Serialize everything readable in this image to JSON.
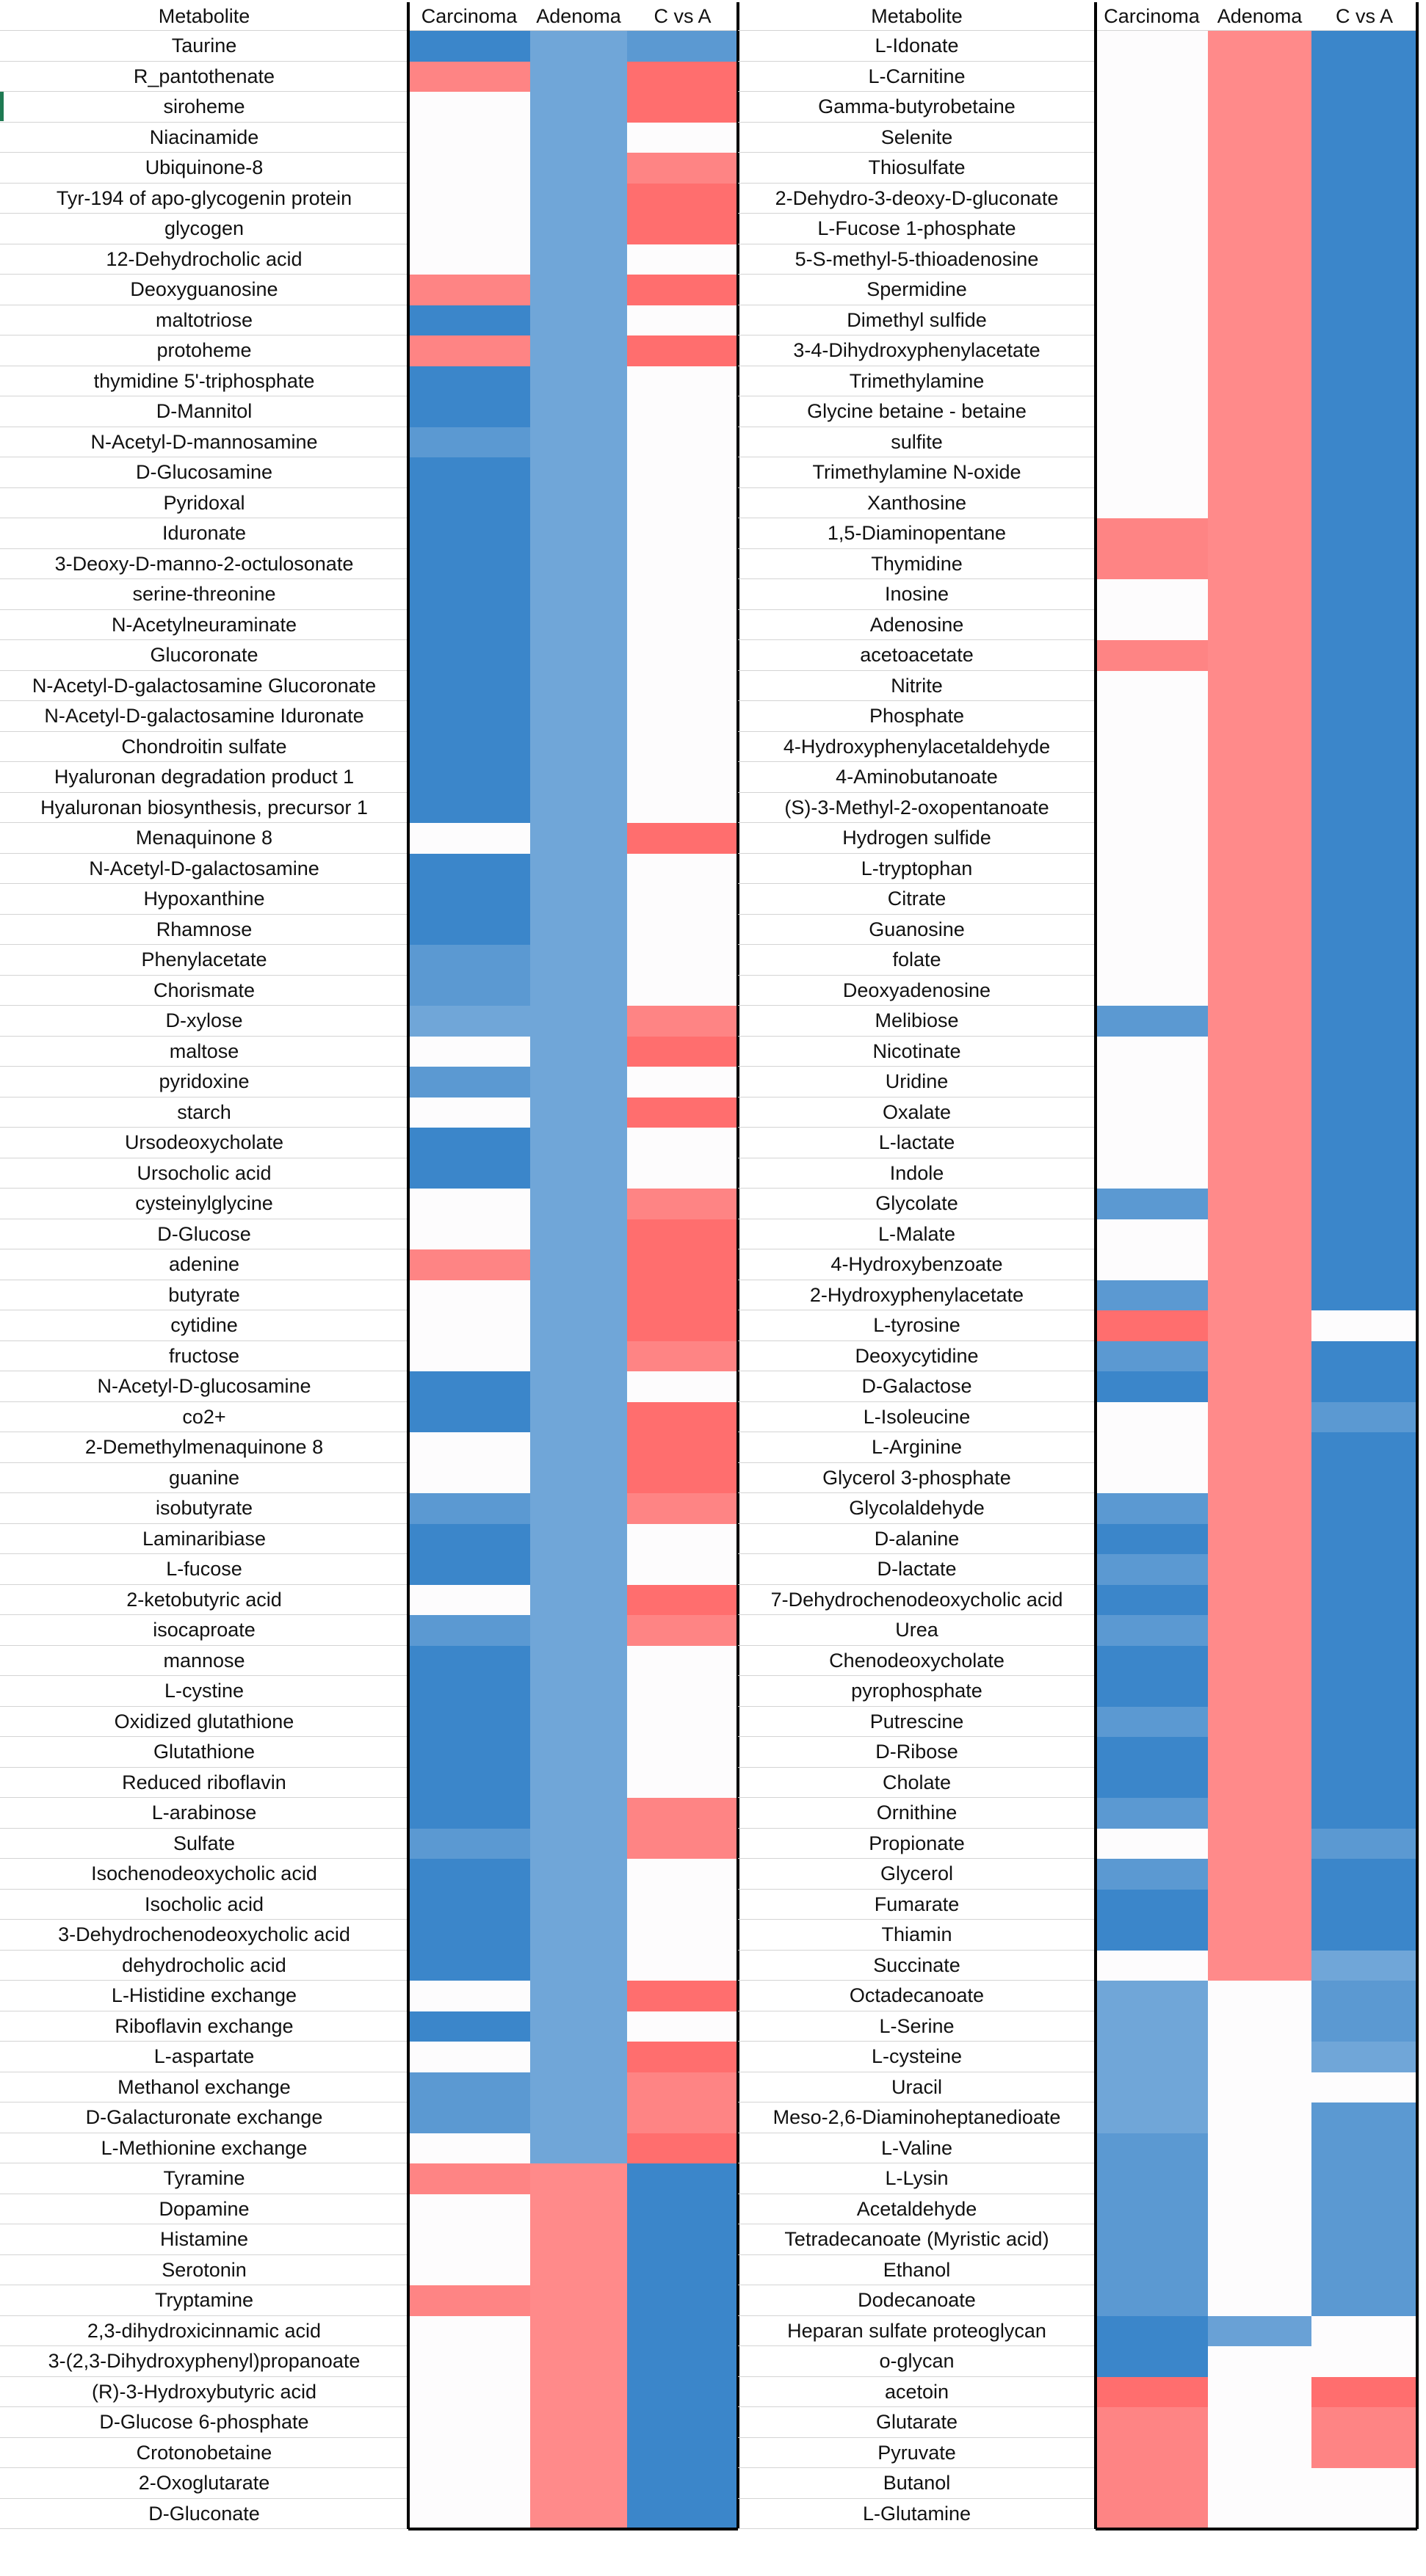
{
  "chart_data": {
    "type": "heatmap",
    "title": "",
    "columns": [
      "Metabolite",
      "Carcinoma",
      "Adenoma",
      "C vs A"
    ],
    "colors": {
      "b1": "#2f7fc6",
      "b2": "#3b86ca",
      "b3": "#5b99d2",
      "b4": "#70a6d8",
      "b5": "#69a1d6",
      "w": "#fdfcfd",
      "r1": "#ff6e6e",
      "r2": "#fe8484",
      "r3": "#ff8a8a"
    },
    "panels": [
      {
        "rows": [
          [
            "Taurine",
            "b2",
            "b4",
            "b3"
          ],
          [
            "R_pantothenate",
            "r2",
            "b4",
            "r1"
          ],
          [
            "siroheme",
            "w",
            "b4",
            "r1"
          ],
          [
            "Niacinamide",
            "w",
            "b4",
            "w"
          ],
          [
            "Ubiquinone-8",
            "w",
            "b4",
            "r2"
          ],
          [
            "Tyr-194 of apo-glycogenin protein",
            "w",
            "b4",
            "r1"
          ],
          [
            "glycogen",
            "w",
            "b4",
            "r1"
          ],
          [
            "12-Dehydrocholic acid",
            "w",
            "b4",
            "w"
          ],
          [
            "Deoxyguanosine",
            "r2",
            "b4",
            "r1"
          ],
          [
            "maltotriose",
            "b2",
            "b4",
            "w"
          ],
          [
            "protoheme",
            "r2",
            "b4",
            "r1"
          ],
          [
            "thymidine 5'-triphosphate",
            "b2",
            "b4",
            "w"
          ],
          [
            "D-Mannitol",
            "b2",
            "b4",
            "w"
          ],
          [
            "N-Acetyl-D-mannosamine",
            "b3",
            "b4",
            "w"
          ],
          [
            "D-Glucosamine",
            "b2",
            "b4",
            "w"
          ],
          [
            "Pyridoxal",
            "b2",
            "b4",
            "w"
          ],
          [
            "Iduronate",
            "b2",
            "b4",
            "w"
          ],
          [
            "3-Deoxy-D-manno-2-octulosonate",
            "b2",
            "b4",
            "w"
          ],
          [
            "serine-threonine",
            "b2",
            "b4",
            "w"
          ],
          [
            "N-Acetylneuraminate",
            "b2",
            "b4",
            "w"
          ],
          [
            "Glucoronate",
            "b2",
            "b4",
            "w"
          ],
          [
            "N-Acetyl-D-galactosamine Glucoronate",
            "b2",
            "b4",
            "w"
          ],
          [
            "N-Acetyl-D-galactosamine Iduronate",
            "b2",
            "b4",
            "w"
          ],
          [
            "Chondroitin sulfate",
            "b2",
            "b4",
            "w"
          ],
          [
            "Hyaluronan degradation product 1",
            "b2",
            "b4",
            "w"
          ],
          [
            "Hyaluronan biosynthesis, precursor 1",
            "b2",
            "b4",
            "w"
          ],
          [
            "Menaquinone 8",
            "w",
            "b4",
            "r1"
          ],
          [
            "N-Acetyl-D-galactosamine",
            "b2",
            "b4",
            "w"
          ],
          [
            "Hypoxanthine",
            "b2",
            "b4",
            "w"
          ],
          [
            "Rhamnose",
            "b2",
            "b4",
            "w"
          ],
          [
            "Phenylacetate",
            "b3",
            "b4",
            "w"
          ],
          [
            "Chorismate",
            "b3",
            "b4",
            "w"
          ],
          [
            "D-xylose",
            "b4",
            "b4",
            "r2"
          ],
          [
            "maltose",
            "w",
            "b4",
            "r1"
          ],
          [
            "pyridoxine",
            "b3",
            "b4",
            "w"
          ],
          [
            "starch",
            "w",
            "b4",
            "r1"
          ],
          [
            "Ursodeoxycholate",
            "b2",
            "b4",
            "w"
          ],
          [
            "Ursocholic acid",
            "b2",
            "b4",
            "w"
          ],
          [
            "cysteinylglycine",
            "w",
            "b4",
            "r2"
          ],
          [
            "D-Glucose",
            "w",
            "b4",
            "r1"
          ],
          [
            "adenine",
            "r2",
            "b4",
            "r1"
          ],
          [
            "butyrate",
            "w",
            "b4",
            "r1"
          ],
          [
            "cytidine",
            "w",
            "b4",
            "r1"
          ],
          [
            "fructose",
            "w",
            "b4",
            "r2"
          ],
          [
            "N-Acetyl-D-glucosamine",
            "b2",
            "b4",
            "w"
          ],
          [
            "co2+",
            "b2",
            "b4",
            "r1"
          ],
          [
            "2-Demethylmenaquinone 8",
            "w",
            "b4",
            "r1"
          ],
          [
            "guanine",
            "w",
            "b4",
            "r1"
          ],
          [
            "isobutyrate",
            "b3",
            "b4",
            "r2"
          ],
          [
            "Laminaribiase",
            "b2",
            "b4",
            "w"
          ],
          [
            "L-fucose",
            "b2",
            "b4",
            "w"
          ],
          [
            "2-ketobutyric acid",
            "w",
            "b4",
            "r1"
          ],
          [
            "isocaproate",
            "b3",
            "b4",
            "r2"
          ],
          [
            "mannose",
            "b2",
            "b4",
            "w"
          ],
          [
            "L-cystine",
            "b2",
            "b4",
            "w"
          ],
          [
            "Oxidized glutathione",
            "b2",
            "b4",
            "w"
          ],
          [
            "Glutathione",
            "b2",
            "b4",
            "w"
          ],
          [
            "Reduced riboflavin",
            "b2",
            "b4",
            "w"
          ],
          [
            "L-arabinose",
            "b2",
            "b4",
            "r2"
          ],
          [
            "Sulfate",
            "b3",
            "b4",
            "r2"
          ],
          [
            "Isochenodeoxycholic acid",
            "b2",
            "b4",
            "w"
          ],
          [
            "Isocholic acid",
            "b2",
            "b4",
            "w"
          ],
          [
            "3-Dehydrochenodeoxycholic acid",
            "b2",
            "b4",
            "w"
          ],
          [
            "dehydrocholic acid",
            "b2",
            "b4",
            "w"
          ],
          [
            "L-Histidine exchange",
            "w",
            "b4",
            "r1"
          ],
          [
            "Riboflavin exchange",
            "b2",
            "b4",
            "w"
          ],
          [
            "L-aspartate",
            "w",
            "b4",
            "r1"
          ],
          [
            "Methanol exchange",
            "b3",
            "b4",
            "r2"
          ],
          [
            "D-Galacturonate exchange",
            "b3",
            "b4",
            "r2"
          ],
          [
            "L-Methionine exchange",
            "w",
            "b4",
            "r1"
          ],
          [
            "Tyramine",
            "r2",
            "r3",
            "b2"
          ],
          [
            "Dopamine",
            "w",
            "r3",
            "b2"
          ],
          [
            "Histamine",
            "w",
            "r3",
            "b2"
          ],
          [
            "Serotonin",
            "w",
            "r3",
            "b2"
          ],
          [
            "Tryptamine",
            "r2",
            "r3",
            "b2"
          ],
          [
            "2,3-dihydroxicinnamic acid",
            "w",
            "r3",
            "b2"
          ],
          [
            "3-(2,3-Dihydroxyphenyl)propanoate",
            "w",
            "r3",
            "b2"
          ],
          [
            "(R)-3-Hydroxybutyric acid",
            "w",
            "r3",
            "b2"
          ],
          [
            "D-Glucose 6-phosphate",
            "w",
            "r3",
            "b2"
          ],
          [
            "Crotonobetaine",
            "w",
            "r3",
            "b2"
          ],
          [
            "2-Oxoglutarate",
            "w",
            "r3",
            "b2"
          ],
          [
            "D-Gluconate",
            "w",
            "r3",
            "b2"
          ]
        ]
      },
      {
        "rows": [
          [
            "L-Idonate",
            "w",
            "r3",
            "b2"
          ],
          [
            "L-Carnitine",
            "w",
            "r3",
            "b2"
          ],
          [
            "Gamma-butyrobetaine",
            "w",
            "r3",
            "b2"
          ],
          [
            "Selenite",
            "w",
            "r3",
            "b2"
          ],
          [
            "Thiosulfate",
            "w",
            "r3",
            "b2"
          ],
          [
            "2-Dehydro-3-deoxy-D-gluconate",
            "w",
            "r3",
            "b2"
          ],
          [
            "L-Fucose 1-phosphate",
            "w",
            "r3",
            "b2"
          ],
          [
            "5-S-methyl-5-thioadenosine",
            "w",
            "r3",
            "b2"
          ],
          [
            "Spermidine",
            "w",
            "r3",
            "b2"
          ],
          [
            "Dimethyl sulfide",
            "w",
            "r3",
            "b2"
          ],
          [
            "3-4-Dihydroxyphenylacetate",
            "w",
            "r3",
            "b2"
          ],
          [
            "Trimethylamine",
            "w",
            "r3",
            "b2"
          ],
          [
            "Glycine betaine - betaine",
            "w",
            "r3",
            "b2"
          ],
          [
            "sulfite",
            "w",
            "r3",
            "b2"
          ],
          [
            "Trimethylamine N-oxide",
            "w",
            "r3",
            "b2"
          ],
          [
            "Xanthosine",
            "w",
            "r3",
            "b2"
          ],
          [
            "1,5-Diaminopentane",
            "r2",
            "r3",
            "b2"
          ],
          [
            "Thymidine",
            "r2",
            "r3",
            "b2"
          ],
          [
            "Inosine",
            "w",
            "r3",
            "b2"
          ],
          [
            "Adenosine",
            "w",
            "r3",
            "b2"
          ],
          [
            "acetoacetate",
            "r2",
            "r3",
            "b2"
          ],
          [
            "Nitrite",
            "w",
            "r3",
            "b2"
          ],
          [
            "Phosphate",
            "w",
            "r3",
            "b2"
          ],
          [
            "4-Hydroxyphenylacetaldehyde",
            "w",
            "r3",
            "b2"
          ],
          [
            "4-Aminobutanoate",
            "w",
            "r3",
            "b2"
          ],
          [
            "(S)-3-Methyl-2-oxopentanoate",
            "w",
            "r3",
            "b2"
          ],
          [
            "Hydrogen sulfide",
            "w",
            "r3",
            "b2"
          ],
          [
            "L-tryptophan",
            "w",
            "r3",
            "b2"
          ],
          [
            "Citrate",
            "w",
            "r3",
            "b2"
          ],
          [
            "Guanosine",
            "w",
            "r3",
            "b2"
          ],
          [
            "folate",
            "w",
            "r3",
            "b2"
          ],
          [
            "Deoxyadenosine",
            "w",
            "r3",
            "b2"
          ],
          [
            "Melibiose",
            "b3",
            "r3",
            "b2"
          ],
          [
            "Nicotinate",
            "w",
            "r3",
            "b2"
          ],
          [
            "Uridine",
            "w",
            "r3",
            "b2"
          ],
          [
            "Oxalate",
            "w",
            "r3",
            "b2"
          ],
          [
            "L-lactate",
            "w",
            "r3",
            "b2"
          ],
          [
            "Indole",
            "w",
            "r3",
            "b2"
          ],
          [
            "Glycolate",
            "b3",
            "r3",
            "b2"
          ],
          [
            "L-Malate",
            "w",
            "r3",
            "b2"
          ],
          [
            "4-Hydroxybenzoate",
            "w",
            "r3",
            "b2"
          ],
          [
            "2-Hydroxyphenylacetate",
            "b3",
            "r3",
            "b2"
          ],
          [
            "L-tyrosine",
            "r1",
            "r3",
            "w"
          ],
          [
            "Deoxycytidine",
            "b3",
            "r3",
            "b2"
          ],
          [
            "D-Galactose",
            "b2",
            "r3",
            "b2"
          ],
          [
            "L-Isoleucine",
            "w",
            "r3",
            "b3"
          ],
          [
            "L-Arginine",
            "w",
            "r3",
            "b2"
          ],
          [
            "Glycerol 3-phosphate",
            "w",
            "r3",
            "b2"
          ],
          [
            "Glycolaldehyde",
            "b3",
            "r3",
            "b2"
          ],
          [
            "D-alanine",
            "b2",
            "r3",
            "b2"
          ],
          [
            "D-lactate",
            "b3",
            "r3",
            "b2"
          ],
          [
            "7-Dehydrochenodeoxycholic acid",
            "b2",
            "r3",
            "b2"
          ],
          [
            "Urea",
            "b3",
            "r3",
            "b2"
          ],
          [
            "Chenodeoxycholate",
            "b2",
            "r3",
            "b2"
          ],
          [
            "pyrophosphate",
            "b2",
            "r3",
            "b2"
          ],
          [
            "Putrescine",
            "b3",
            "r3",
            "b2"
          ],
          [
            "D-Ribose",
            "b2",
            "r3",
            "b2"
          ],
          [
            "Cholate",
            "b2",
            "r3",
            "b2"
          ],
          [
            "Ornithine",
            "b3",
            "r3",
            "b2"
          ],
          [
            "Propionate",
            "w",
            "r3",
            "b3"
          ],
          [
            "Glycerol",
            "b3",
            "r3",
            "b2"
          ],
          [
            "Fumarate",
            "b2",
            "r3",
            "b2"
          ],
          [
            "Thiamin",
            "b2",
            "r3",
            "b2"
          ],
          [
            "Succinate",
            "w",
            "r3",
            "b4"
          ],
          [
            "Octadecanoate",
            "b4",
            "w",
            "b3"
          ],
          [
            "L-Serine",
            "b4",
            "w",
            "b3"
          ],
          [
            "L-cysteine",
            "b4",
            "w",
            "b4"
          ],
          [
            "Uracil",
            "b4",
            "w",
            "w"
          ],
          [
            "Meso-2,6-Diaminoheptanedioate",
            "b4",
            "w",
            "b3"
          ],
          [
            "L-Valine",
            "b3",
            "w",
            "b3"
          ],
          [
            "L-Lysin",
            "b3",
            "w",
            "b3"
          ],
          [
            "Acetaldehyde",
            "b3",
            "w",
            "b3"
          ],
          [
            "Tetradecanoate (Myristic acid)",
            "b3",
            "w",
            "b3"
          ],
          [
            "Ethanol",
            "b3",
            "w",
            "b3"
          ],
          [
            "Dodecanoate",
            "b3",
            "w",
            "b3"
          ],
          [
            "Heparan sulfate proteoglycan",
            "b2",
            "b5",
            "w"
          ],
          [
            "o-glycan",
            "b2",
            "w",
            "w"
          ],
          [
            "acetoin",
            "r1",
            "w",
            "r1"
          ],
          [
            "Glutarate",
            "r2",
            "w",
            "r2"
          ],
          [
            "Pyruvate",
            "r2",
            "w",
            "r2"
          ],
          [
            "Butanol",
            "r2",
            "w",
            "w"
          ],
          [
            "L-Glutamine",
            "r2",
            "w",
            "w"
          ]
        ]
      }
    ]
  }
}
